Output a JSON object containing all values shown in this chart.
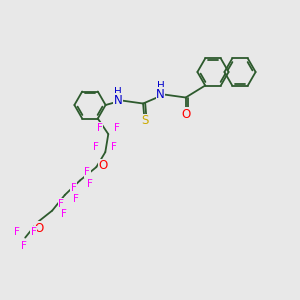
{
  "background_color": "#e8e8e8",
  "bond_color": "#2d5a2d",
  "atom_colors": {
    "N": "#0000cc",
    "O": "#ff0000",
    "S": "#ccaa00",
    "F": "#ff00ff",
    "H": "#0000cc",
    "C": "#2d5a2d"
  },
  "figsize": [
    3.0,
    3.0
  ],
  "dpi": 100,
  "bond_lw": 1.3,
  "ring_r": 0.55,
  "font_size": 7.5
}
